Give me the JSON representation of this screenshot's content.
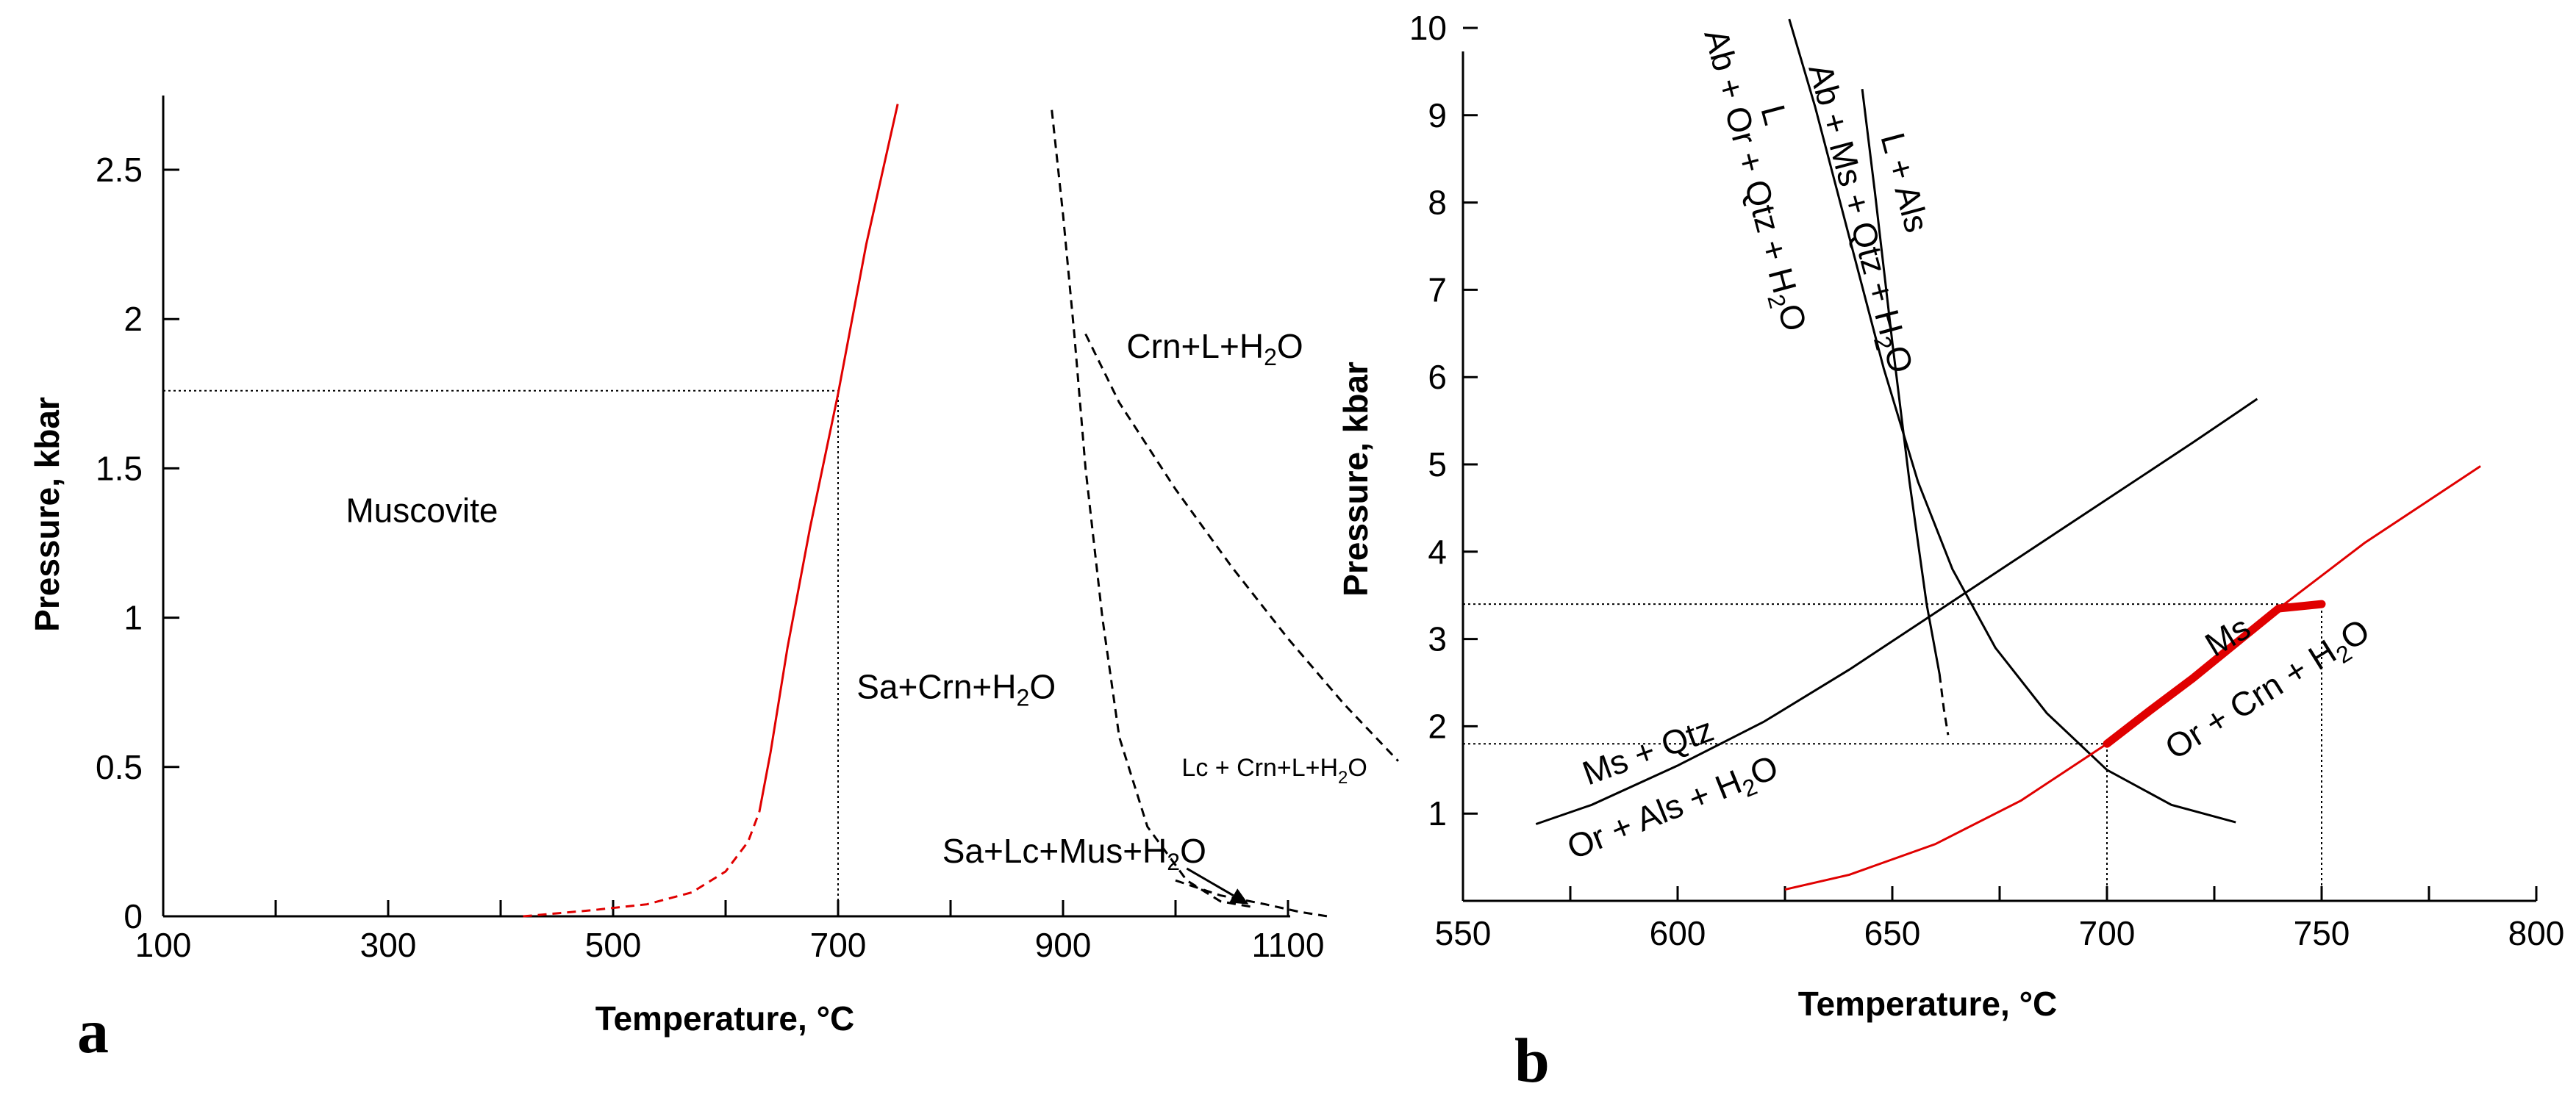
{
  "chart_data": [
    {
      "panel": "a",
      "type": "line",
      "xlabel": "Temperature, °C",
      "ylabel": "Pressure, kbar",
      "xlim": [
        100,
        1200
      ],
      "ylim": [
        0,
        2.75
      ],
      "xticks": [
        100,
        300,
        500,
        700,
        900,
        1100
      ],
      "xticks_minor": [
        200,
        400,
        600,
        800,
        1000
      ],
      "yticks": [
        0,
        0.5,
        1,
        1.5,
        2,
        2.5
      ],
      "ytick_labels": [
        "0",
        "0.5",
        "1",
        "1.5",
        "2",
        "2.5"
      ],
      "colors": {
        "red": "#e00000",
        "black": "#000000"
      },
      "series": [
        {
          "name": "muscovite-breakdown-solid",
          "style": "red-solid",
          "x": [
            630,
            640,
            655,
            675,
            700,
            725,
            753
          ],
          "y": [
            0.35,
            0.55,
            0.9,
            1.3,
            1.75,
            2.25,
            2.72
          ]
        },
        {
          "name": "muscovite-breakdown-dashed",
          "style": "red-dashed",
          "x": [
            420,
            480,
            530,
            570,
            600,
            620,
            630
          ],
          "y": [
            0.0,
            0.02,
            0.04,
            0.08,
            0.15,
            0.25,
            0.35
          ]
        },
        {
          "name": "crn-l-boundary",
          "style": "black-dashed",
          "x": [
            890,
            900,
            910,
            920,
            935,
            950,
            975,
            1010,
            1040,
            1070
          ],
          "y": [
            2.7,
            2.35,
            1.95,
            1.5,
            1.0,
            0.6,
            0.3,
            0.12,
            0.05,
            0.03
          ]
        },
        {
          "name": "crn-l-h2o-boundary",
          "style": "black-dashed",
          "x": [
            920,
            950,
            1000,
            1050,
            1100,
            1150,
            1198
          ],
          "y": [
            1.95,
            1.72,
            1.43,
            1.17,
            0.93,
            0.71,
            0.52
          ]
        },
        {
          "name": "lc-boundary",
          "style": "black-dashed",
          "x": [
            1000,
            1040,
            1080,
            1110,
            1135
          ],
          "y": [
            0.12,
            0.07,
            0.04,
            0.015,
            0.0
          ]
        }
      ],
      "reference_lines": [
        {
          "x": [
            100,
            700
          ],
          "y": [
            1.76,
            1.76
          ]
        },
        {
          "x": [
            700,
            700
          ],
          "y": [
            0,
            1.76
          ]
        }
      ],
      "annotations": [
        {
          "text": "Muscovite",
          "x": 330,
          "y": 1.32,
          "size": "large"
        },
        {
          "text_main": "Sa+Crn+H",
          "sub": "2",
          "text_end": "O",
          "x": 805,
          "y": 0.73,
          "size": "large"
        },
        {
          "text_main": "Crn+L+H",
          "sub": "2",
          "text_end": "O",
          "x": 1035,
          "y": 1.87,
          "size": "large"
        },
        {
          "text_main": "Lc + Crn+L+H",
          "sub": "2",
          "text_end": "O",
          "x": 1088,
          "y": 0.47,
          "size": "small"
        },
        {
          "text_main": "Sa+Lc+Mus+H",
          "sub": "2",
          "text_end": "O",
          "x": 910,
          "y": 0.18,
          "size": "large"
        }
      ],
      "arrow": {
        "from_x": 1010,
        "from_y": 0.16,
        "to_x": 1065,
        "to_y": 0.04
      },
      "panel_label": "a"
    },
    {
      "panel": "b",
      "type": "line",
      "xlabel": "Temperature, °C",
      "ylabel": "Pressure, kbar",
      "xlim": [
        550,
        800
      ],
      "ylim": [
        0,
        10
      ],
      "xticks": [
        550,
        600,
        650,
        700,
        750,
        800
      ],
      "xticks_minor": [
        575,
        625,
        675,
        725,
        775
      ],
      "yticks": [
        1,
        2,
        3,
        4,
        5,
        6,
        7,
        8,
        9,
        10
      ],
      "ytick_labels": [
        "1",
        "2",
        "3",
        "4",
        "5",
        "6",
        "7",
        "8",
        "9",
        "10"
      ],
      "colors": {
        "red": "#e00000",
        "black": "#000000"
      },
      "series": [
        {
          "name": "granite-wet-solidus",
          "style": "black-solid",
          "x": [
            626,
            632,
            640,
            648,
            656,
            664,
            674,
            686,
            700,
            715,
            730
          ],
          "y": [
            10.1,
            9.1,
            7.6,
            6.1,
            4.8,
            3.8,
            2.9,
            2.15,
            1.5,
            1.1,
            0.9
          ]
        },
        {
          "name": "ab-ms-qtz-h2o-solid",
          "style": "black-solid",
          "x": [
            643,
            646,
            650,
            654,
            658,
            661
          ],
          "y": [
            9.3,
            8.1,
            6.4,
            4.8,
            3.4,
            2.6
          ]
        },
        {
          "name": "ab-ms-qtz-h2o-dashed",
          "style": "black-dashed",
          "x": [
            661,
            662,
            663
          ],
          "y": [
            2.6,
            2.2,
            1.9
          ]
        },
        {
          "name": "ms-qtz-breakdown",
          "style": "black-solid",
          "x": [
            567,
            580,
            600,
            620,
            640,
            660,
            680,
            700,
            720,
            735
          ],
          "y": [
            0.88,
            1.1,
            1.55,
            2.05,
            2.65,
            3.3,
            3.95,
            4.6,
            5.25,
            5.75
          ]
        },
        {
          "name": "ms-breakdown-red",
          "style": "red-solid",
          "x": [
            625,
            640,
            660,
            680,
            700,
            720,
            740,
            760,
            787
          ],
          "y": [
            0.13,
            0.3,
            0.65,
            1.15,
            1.8,
            2.55,
            3.35,
            4.1,
            4.98
          ]
        },
        {
          "name": "ms-breakdown-highlight",
          "style": "red-thick",
          "x": [
            700,
            710,
            720,
            730,
            740,
            750
          ],
          "y": [
            1.8,
            2.18,
            2.55,
            2.95,
            3.35,
            3.4
          ]
        }
      ],
      "reference_lines": [
        {
          "x": [
            550,
            750
          ],
          "y": [
            3.4,
            3.4
          ]
        },
        {
          "x": [
            550,
            700
          ],
          "y": [
            1.8,
            1.8
          ]
        },
        {
          "x": [
            700,
            700
          ],
          "y": [
            0,
            1.8
          ]
        },
        {
          "x": [
            750,
            750
          ],
          "y": [
            0,
            3.4
          ]
        }
      ],
      "labels": {
        "curve1_top": "Ab + Or + Qtz + H",
        "curve1_bottom": "L",
        "curve2_top": "Ab + Ms + Qtz + H",
        "curve2_bottom": "L + Als",
        "ms_qtz": "Ms + Qtz",
        "or_als": "Or + Als + H",
        "ms": "Ms",
        "or_crn": "Or + Crn + H",
        "sub2": "2",
        "o": "O"
      },
      "panel_label": "b"
    }
  ]
}
